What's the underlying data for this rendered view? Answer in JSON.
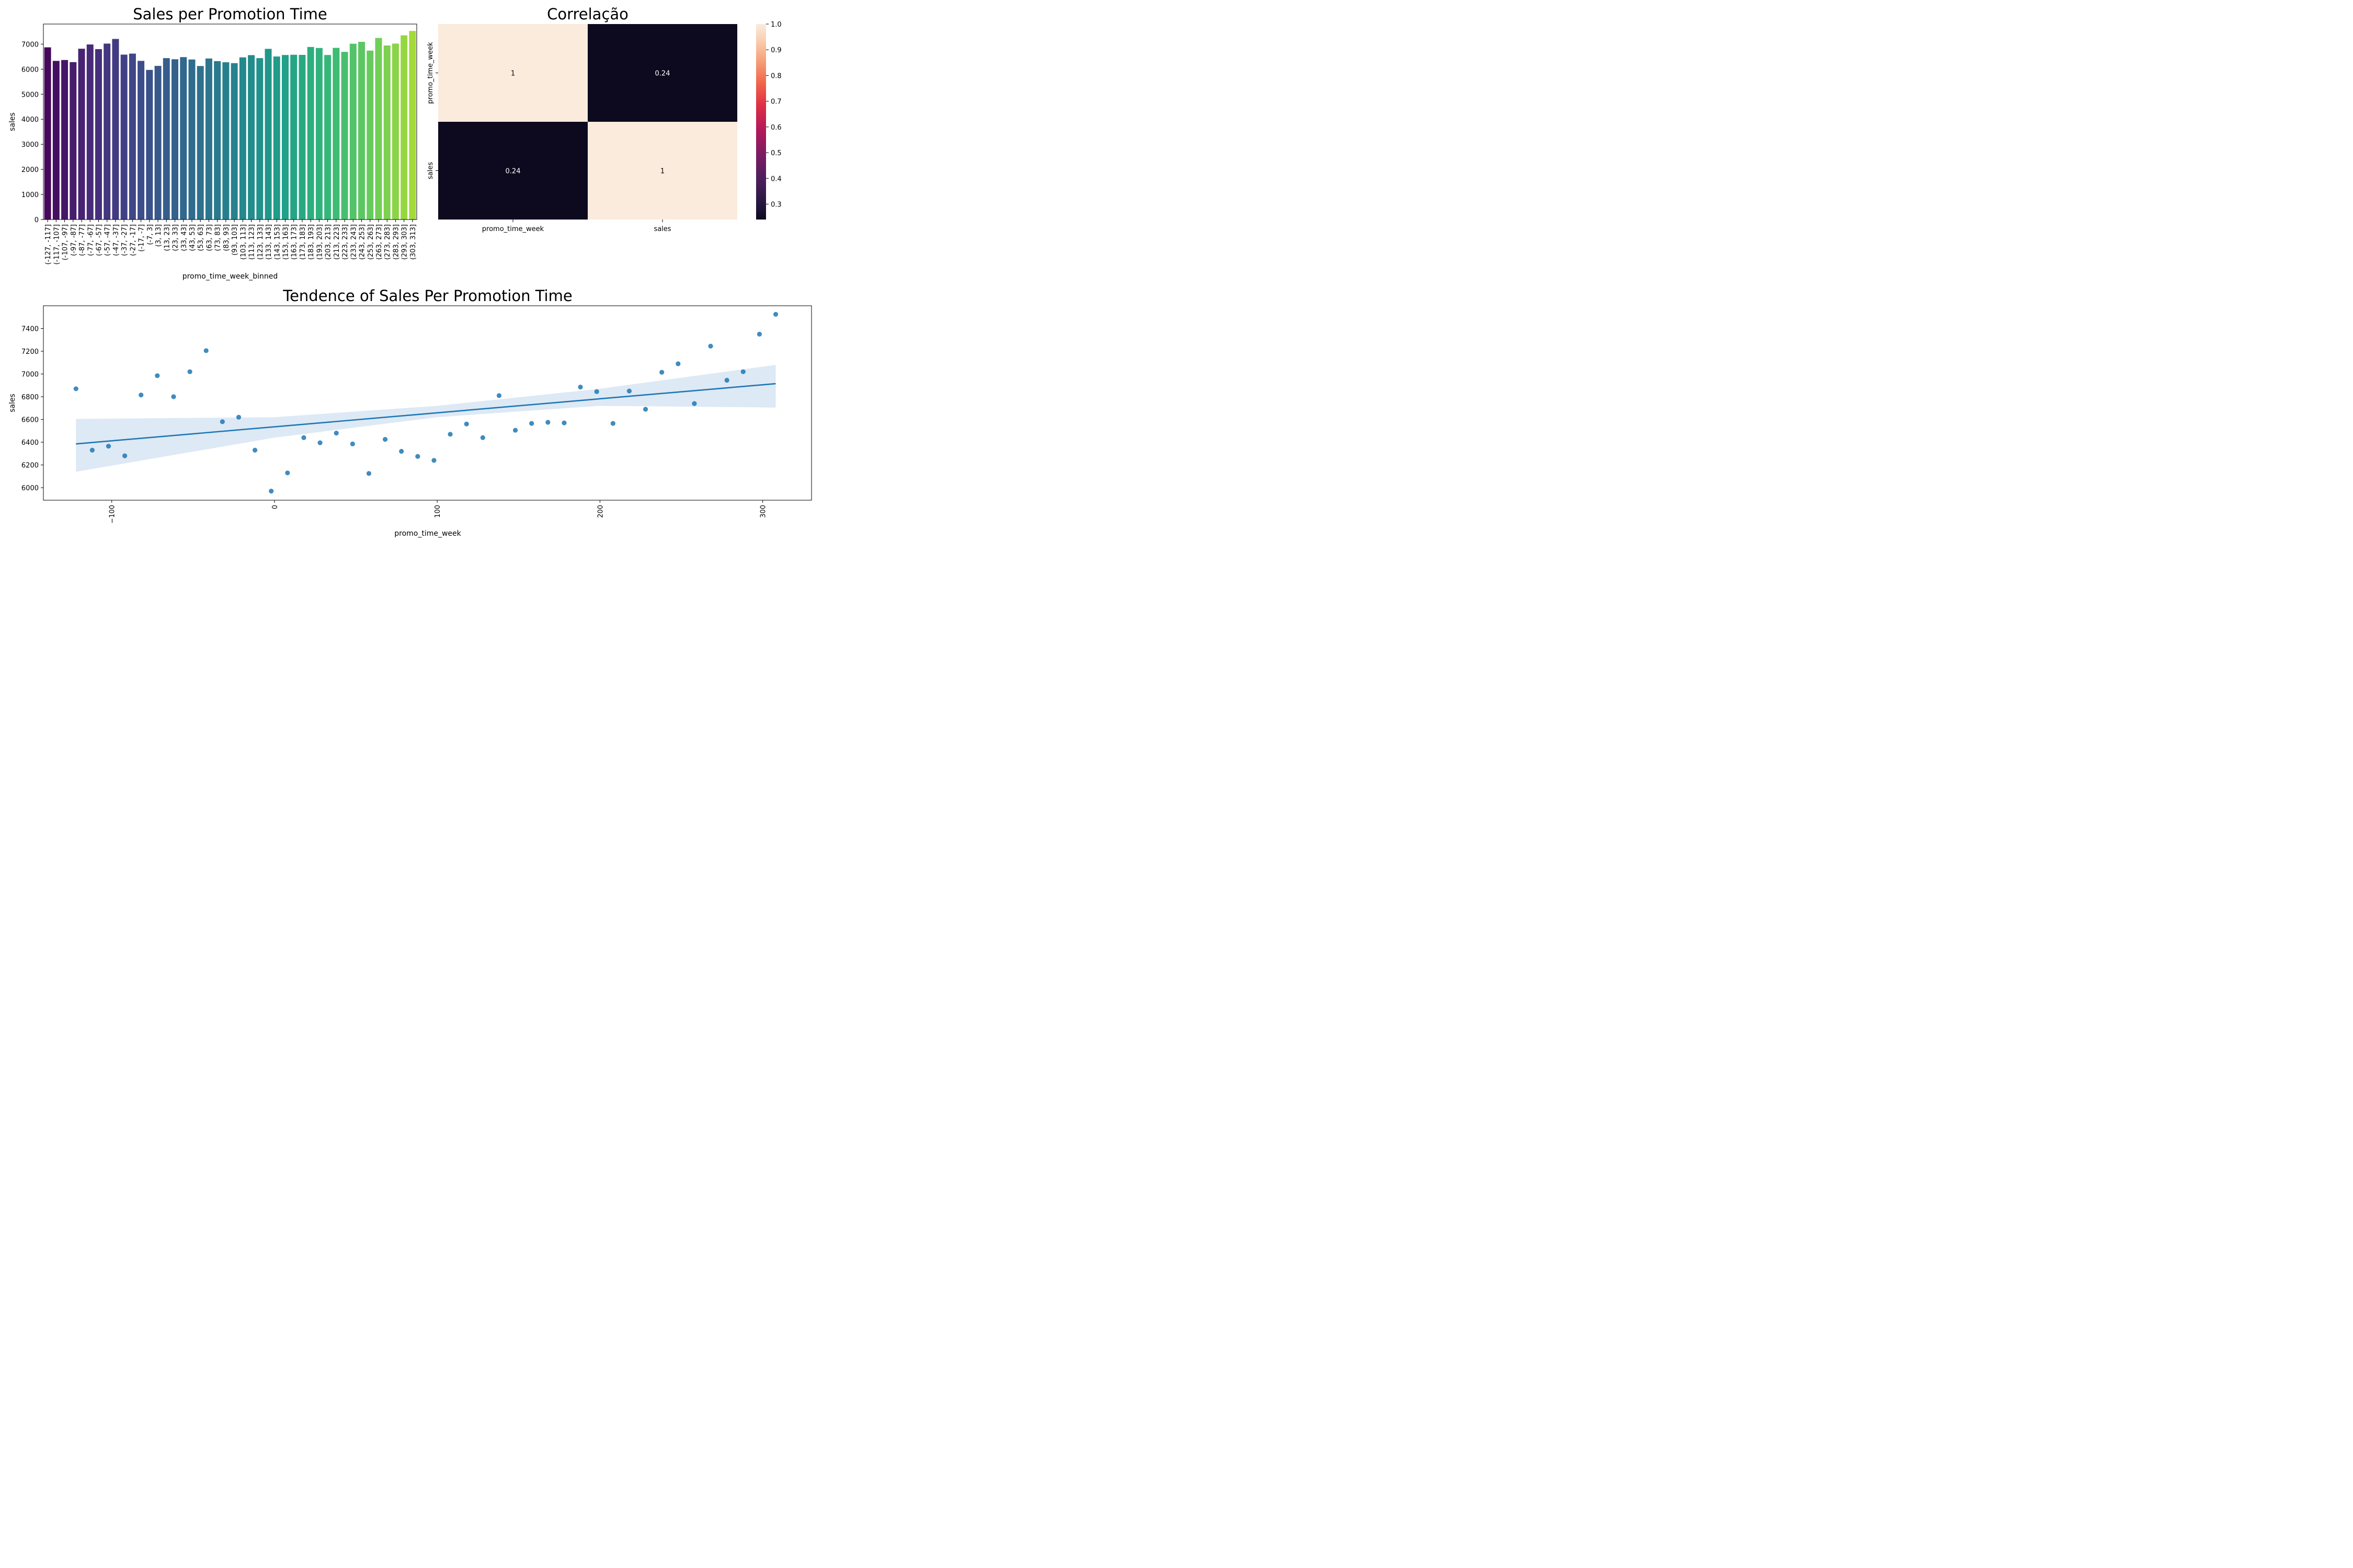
{
  "chart_data": [
    {
      "type": "bar",
      "title": "Sales per Promotion Time",
      "xlabel": "promo_time_week_binned",
      "ylabel": "sales",
      "ylim": [
        0,
        7800
      ],
      "yticks": [
        0,
        1000,
        2000,
        3000,
        4000,
        5000,
        6000,
        7000
      ],
      "palette": "viridis",
      "categories": [
        "(-127, -117]",
        "(-117, -107]",
        "(-107, -97]",
        "(-97, -87]",
        "(-87, -77]",
        "(-77, -67]",
        "(-67, -57]",
        "(-57, -47]",
        "(-47, -37]",
        "(-37, -27]",
        "(-27, -17]",
        "(-17, -7]",
        "(-7, 3]",
        "(3, 13]",
        "(13, 23]",
        "(23, 33]",
        "(33, 43]",
        "(43, 53]",
        "(53, 63]",
        "(63, 73]",
        "(73, 83]",
        "(83, 93]",
        "(93, 103]",
        "(103, 113]",
        "(113, 123]",
        "(123, 133]",
        "(133, 143]",
        "(143, 153]",
        "(153, 163]",
        "(163, 173]",
        "(173, 183]",
        "(183, 193]",
        "(193, 203]",
        "(203, 213]",
        "(213, 223]",
        "(223, 233]",
        "(233, 243]",
        "(243, 253]",
        "(253, 263]",
        "(263, 273]",
        "(273, 283]",
        "(283, 293]",
        "(293, 303]",
        "(303, 313]"
      ],
      "values": [
        6870,
        6330,
        6365,
        6280,
        6815,
        6985,
        6800,
        7020,
        7205,
        6580,
        6620,
        6330,
        5970,
        6130,
        6440,
        6395,
        6480,
        6385,
        6125,
        6425,
        6320,
        6275,
        6240,
        6470,
        6560,
        6440,
        6810,
        6505,
        6565,
        6575,
        6570,
        6885,
        6845,
        6565,
        6850,
        6690,
        7015,
        7090,
        6740,
        7245,
        6945,
        7020,
        7350,
        7525
      ]
    },
    {
      "type": "heatmap",
      "title": "Correlação",
      "labels": [
        "promo_time_week",
        "sales"
      ],
      "matrix": [
        [
          1,
          0.24
        ],
        [
          0.24,
          1
        ]
      ],
      "annotations": [
        [
          "1",
          "0.24"
        ],
        [
          "0.24",
          "1"
        ]
      ],
      "colorbar": {
        "min": 0.24,
        "max": 1.0,
        "ticks": [
          "0.3",
          "0.4",
          "0.5",
          "0.6",
          "0.7",
          "0.8",
          "0.9",
          "1.0"
        ],
        "tick_values": [
          0.3,
          0.4,
          0.5,
          0.6,
          0.7,
          0.8,
          0.9,
          1.0
        ],
        "colormap": "rocket"
      }
    },
    {
      "type": "scatter",
      "title": "Tendence of Sales Per Promotion Time",
      "xlabel": "promo_time_week",
      "ylabel": "sales",
      "xlim": [
        -142,
        330
      ],
      "ylim": [
        5890,
        7600
      ],
      "xticks": [
        -100,
        0,
        100,
        200,
        300
      ],
      "xtick_labels": [
        "−100",
        "0",
        "100",
        "200",
        "300"
      ],
      "yticks": [
        6000,
        6200,
        6400,
        6600,
        6800,
        7000,
        7200,
        7400
      ],
      "x": [
        -122,
        -112,
        -102,
        -92,
        -82,
        -72,
        -62,
        -52,
        -42,
        -32,
        -22,
        -12,
        -2,
        8,
        18,
        28,
        38,
        48,
        58,
        68,
        78,
        88,
        98,
        108,
        118,
        128,
        138,
        148,
        158,
        168,
        178,
        188,
        198,
        208,
        218,
        228,
        238,
        248,
        258,
        268,
        278,
        288,
        298,
        308
      ],
      "y": [
        6870,
        6330,
        6365,
        6280,
        6815,
        6985,
        6800,
        7020,
        7205,
        6580,
        6620,
        6330,
        5970,
        6130,
        6440,
        6395,
        6480,
        6385,
        6125,
        6425,
        6320,
        6275,
        6240,
        6470,
        6560,
        6440,
        6810,
        6505,
        6565,
        6575,
        6570,
        6885,
        6845,
        6565,
        6850,
        6690,
        7015,
        7090,
        6740,
        7245,
        6945,
        7020,
        7350,
        7525
      ],
      "regression": {
        "x": [
          -122,
          308
        ],
        "y": [
          6385,
          6915
        ]
      },
      "confidence_band": {
        "x": [
          -122,
          0,
          100,
          200,
          308
        ],
        "lower": [
          6140,
          6440,
          6620,
          6720,
          6705
        ],
        "upper": [
          6605,
          6620,
          6720,
          6870,
          7080
        ]
      },
      "colors": {
        "point": "#1f77b4",
        "line": "#1f77b4",
        "band": "#c6dbef"
      }
    }
  ]
}
